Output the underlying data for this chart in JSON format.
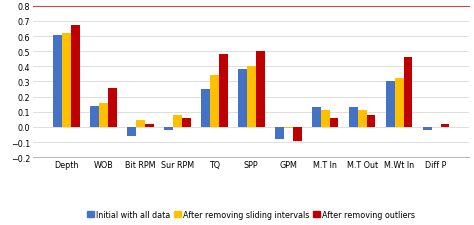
{
  "categories": [
    "Depth",
    "WOB",
    "Bit RPM",
    "Sur RPM",
    "TQ",
    "SPP",
    "GPM",
    "M.T In",
    "M.T Out",
    "M.Wt In",
    "Diff P"
  ],
  "series": {
    "Initial with all data": [
      0.61,
      0.14,
      -0.06,
      -0.02,
      0.25,
      0.38,
      -0.08,
      0.13,
      0.13,
      0.3,
      -0.02
    ],
    "After removing sliding intervals": [
      0.62,
      0.16,
      0.045,
      0.08,
      0.34,
      0.4,
      -0.01,
      0.11,
      0.11,
      0.32,
      0.0
    ],
    "After removing outliers": [
      0.67,
      0.26,
      0.02,
      0.06,
      0.48,
      0.5,
      -0.09,
      0.06,
      0.08,
      0.46,
      0.02
    ]
  },
  "colors": {
    "Initial with all data": "#4472C4",
    "After removing sliding intervals": "#FFC000",
    "After removing outliers": "#C00000"
  },
  "ylim": [
    -0.2,
    0.8
  ],
  "yticks": [
    -0.2,
    -0.1,
    0.0,
    0.1,
    0.2,
    0.3,
    0.4,
    0.5,
    0.6,
    0.7,
    0.8
  ],
  "grid_color": "#D9D9D9",
  "background_color": "#FFFFFF",
  "legend_fontsize": 5.8,
  "tick_fontsize": 5.8,
  "bar_width": 0.24
}
